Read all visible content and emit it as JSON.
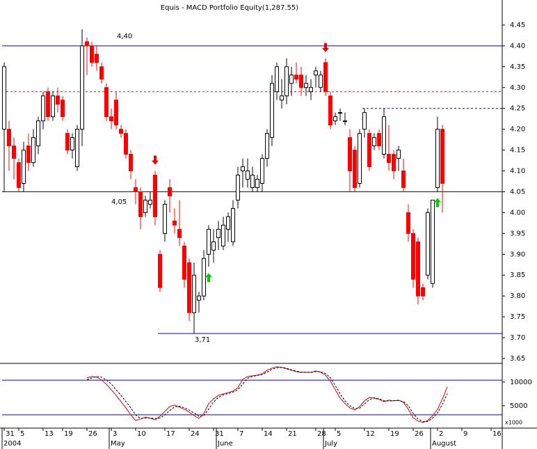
{
  "chart_data": {
    "type": "candlestick",
    "title": "Equis - MACD Portfolio Equity(1,287.55)",
    "categories": [
      "31",
      null,
      null,
      "5",
      null,
      null,
      null,
      null,
      "13",
      null,
      null,
      null,
      "19",
      null,
      null,
      null,
      null,
      "26",
      null,
      null,
      null,
      null,
      "3",
      null,
      null,
      null,
      null,
      "10",
      null,
      null,
      null,
      null,
      null,
      "17",
      null,
      null,
      null,
      null,
      "24",
      null,
      null,
      null,
      null,
      "31",
      null,
      null,
      null,
      null,
      "7",
      null,
      null,
      null,
      null,
      "14",
      null,
      null,
      null,
      null,
      "21",
      null,
      null,
      null,
      null,
      null,
      "28",
      null,
      null,
      null,
      "5",
      null,
      null,
      null,
      null,
      null,
      "12",
      null,
      null,
      null,
      null,
      "19",
      null,
      null,
      null,
      null,
      "26",
      null,
      null,
      null,
      null,
      "2",
      null,
      null,
      null,
      null,
      "9",
      null,
      null,
      null,
      null,
      null,
      "16"
    ],
    "months": [
      "2004",
      null,
      null,
      null,
      null,
      null,
      null,
      null,
      null,
      null,
      null,
      null,
      null,
      null,
      null,
      null,
      null,
      null,
      null,
      null,
      null,
      null,
      "May",
      null,
      null,
      null,
      null,
      null,
      null,
      null,
      null,
      null,
      null,
      null,
      null,
      null,
      null,
      null,
      null,
      null,
      null,
      null,
      null,
      null,
      "June",
      null,
      null,
      null,
      null,
      null,
      null,
      null,
      null,
      null,
      null,
      null,
      null,
      null,
      null,
      null,
      null,
      null,
      null,
      null,
      null,
      null,
      "July",
      null,
      null,
      null,
      null,
      null,
      null,
      null,
      null,
      null,
      null,
      null,
      null,
      null,
      null,
      null,
      null,
      null,
      null,
      null,
      null,
      null,
      "August",
      null,
      null,
      null,
      null,
      null,
      null,
      null,
      null,
      null,
      null,
      null
    ],
    "open": [
      4.2,
      4.2,
      4.16,
      4.12,
      4.07,
      4.16,
      4.12,
      4.16,
      4.22,
      4.29,
      4.23,
      4.28,
      4.27,
      4.19,
      4.15,
      4.11,
      4.2,
      4.41,
      4.4,
      4.38,
      4.35,
      4.3,
      4.23,
      4.27,
      4.2,
      4.19,
      4.14,
      4.06,
      4.05,
      4.0,
      4.02,
      4.09,
      3.9,
      3.95,
      4.06,
      3.98,
      3.96,
      3.92,
      3.88,
      3.76,
      3.79,
      3.8,
      3.9,
      3.91,
      3.94,
      3.92,
      3.96,
      3.93,
      4.03,
      4.1,
      4.08,
      4.06,
      4.06,
      4.07,
      4.13,
      4.18,
      4.29,
      4.27,
      4.28,
      4.31,
      4.33,
      4.33,
      4.3,
      4.29,
      4.33,
      4.3,
      4.36,
      4.28,
      4.22,
      4.24,
      4.22,
      4.18,
      4.15,
      4.07,
      4.2,
      4.19,
      4.16,
      4.19,
      4.14,
      4.14,
      4.14,
      4.13,
      4.1,
      4.0,
      3.95,
      3.93,
      3.82,
      3.85,
      3.83,
      4.06,
      4.2,
      null,
      null,
      null,
      null,
      null,
      null,
      null,
      null,
      null,
      null
    ],
    "high": [
      4.36,
      4.22,
      4.18,
      4.13,
      4.17,
      4.19,
      4.2,
      4.23,
      4.29,
      4.3,
      4.29,
      4.3,
      4.28,
      4.2,
      4.19,
      4.21,
      4.44,
      4.42,
      4.41,
      4.4,
      4.36,
      4.31,
      4.25,
      4.29,
      4.21,
      4.2,
      4.15,
      4.08,
      4.06,
      4.04,
      4.05,
      4.1,
      3.91,
      4.03,
      4.08,
      4.01,
      4.03,
      3.93,
      3.89,
      3.88,
      3.81,
      3.91,
      3.97,
      3.96,
      3.98,
      3.99,
      4.0,
      4.03,
      4.11,
      4.13,
      4.13,
      4.11,
      4.09,
      4.14,
      4.2,
      4.33,
      4.36,
      4.32,
      4.37,
      4.35,
      4.36,
      4.35,
      4.33,
      4.32,
      4.35,
      4.34,
      4.37,
      4.29,
      4.24,
      4.25,
      4.24,
      4.2,
      4.16,
      4.2,
      4.25,
      4.2,
      4.19,
      4.2,
      4.25,
      4.21,
      4.15,
      4.16,
      4.13,
      4.02,
      3.96,
      3.94,
      3.83,
      4.01,
      4.03,
      4.23,
      4.21,
      null,
      null,
      null,
      null,
      null,
      null,
      null,
      null,
      null,
      null
    ],
    "low": [
      4.05,
      4.1,
      4.08,
      4.05,
      4.05,
      4.1,
      4.11,
      4.14,
      4.2,
      4.22,
      4.22,
      4.24,
      4.22,
      4.14,
      4.13,
      4.1,
      4.16,
      4.33,
      4.35,
      4.34,
      4.31,
      4.22,
      4.2,
      4.2,
      4.18,
      4.13,
      4.08,
      4.02,
      3.96,
      3.99,
      4.01,
      3.97,
      3.81,
      3.93,
      4.0,
      3.95,
      3.92,
      3.82,
      3.74,
      3.71,
      3.76,
      3.79,
      3.87,
      3.88,
      3.91,
      3.91,
      3.93,
      3.92,
      4.01,
      4.06,
      4.06,
      4.05,
      4.05,
      4.05,
      4.11,
      4.16,
      4.27,
      4.25,
      4.26,
      4.28,
      4.31,
      4.28,
      4.28,
      4.27,
      4.3,
      4.29,
      4.28,
      4.2,
      4.21,
      4.22,
      4.21,
      4.05,
      4.05,
      4.06,
      4.18,
      4.1,
      4.15,
      4.15,
      4.13,
      4.1,
      4.08,
      4.1,
      4.05,
      3.93,
      3.82,
      3.78,
      3.79,
      3.84,
      3.82,
      4.05,
      4.0,
      null,
      null,
      null,
      null,
      null,
      null,
      null,
      null,
      null,
      null
    ],
    "close": [
      4.35,
      4.16,
      4.13,
      4.06,
      4.15,
      4.12,
      4.18,
      4.22,
      4.28,
      4.23,
      4.28,
      4.26,
      4.23,
      4.15,
      4.18,
      4.2,
      4.4,
      4.4,
      4.36,
      4.36,
      4.32,
      4.23,
      4.22,
      4.21,
      4.19,
      4.14,
      4.1,
      4.05,
      3.99,
      4.03,
      4.03,
      3.99,
      3.82,
      4.02,
      4.04,
      3.97,
      3.94,
      3.84,
      3.76,
      3.85,
      3.8,
      3.89,
      3.96,
      3.93,
      3.96,
      3.97,
      3.99,
      4.01,
      4.09,
      4.11,
      4.1,
      4.09,
      4.08,
      4.13,
      4.19,
      4.31,
      4.35,
      4.28,
      4.35,
      4.33,
      4.32,
      4.3,
      4.31,
      4.3,
      4.34,
      4.33,
      4.29,
      4.21,
      4.23,
      4.24,
      4.22,
      4.1,
      4.06,
      4.19,
      4.24,
      4.11,
      4.18,
      4.16,
      4.23,
      4.12,
      4.1,
      4.15,
      4.06,
      3.95,
      3.84,
      3.8,
      3.8,
      4.0,
      4.03,
      4.2,
      4.07,
      null,
      null,
      null,
      null,
      null,
      null,
      null,
      null,
      null,
      null
    ],
    "up_color": "#ffffff",
    "down_color": "#ff0000",
    "ylim": [
      3.64,
      4.51
    ],
    "yticks": [
      3.65,
      {
        "value": 3.7,
        "label": "3.70"
      },
      3.75,
      {
        "value": 3.8,
        "label": "3.80"
      },
      3.85,
      {
        "value": 3.9,
        "label": "3.90"
      },
      3.95,
      {
        "value": 4.0,
        "label": "4.00"
      },
      4.05,
      {
        "value": 4.1,
        "label": "4.10"
      },
      4.15,
      {
        "value": 4.2,
        "label": "4.20"
      },
      4.25,
      {
        "value": 4.3,
        "label": "4.30"
      },
      4.35,
      {
        "value": 4.4,
        "label": "4.40"
      },
      4.45
    ],
    "levels": [
      {
        "value": 4.4,
        "label": "4,40",
        "color": "#0000cc",
        "style": "solid"
      },
      {
        "value": 4.29,
        "color": "#ff0000",
        "style": "dashed"
      },
      {
        "value": 4.25,
        "color": "#0000cc",
        "style": "dashed",
        "from": 74
      },
      {
        "value": 4.05,
        "label": "4,05",
        "color": "#0000cc",
        "style": "solid"
      },
      {
        "value": 3.71,
        "label": "3,71",
        "color": "#0000cc",
        "style": "solid",
        "from": 32
      }
    ],
    "markers": [
      {
        "at": 31,
        "kind": "down",
        "color": "#ee0000"
      },
      {
        "at": 66,
        "kind": "down",
        "color": "#ee0000"
      },
      {
        "at": 42,
        "kind": "up",
        "color": "#00cc00"
      },
      {
        "at": 89,
        "kind": "up",
        "color": "#00cc00"
      }
    ],
    "lower": {
      "type": "line",
      "scale_label": "x1000",
      "ylim": [
        300,
        13500
      ],
      "yticks": [
        10000,
        5000
      ],
      "levels": [
        {
          "value": 10400,
          "color": "#0000cc"
        },
        {
          "value": 3100,
          "color": "#0000cc"
        }
      ],
      "series": [
        {
          "color": "#dd0000",
          "style": "solid",
          "values": [
            null,
            null,
            null,
            null,
            null,
            null,
            null,
            null,
            null,
            null,
            null,
            null,
            null,
            null,
            null,
            null,
            null,
            10880,
            11170,
            11030,
            10440,
            9560,
            8380,
            7200,
            5880,
            4560,
            3090,
            1910,
            2200,
            2650,
            2350,
            2060,
            2800,
            3820,
            4850,
            5150,
            4710,
            4270,
            3680,
            2940,
            2350,
            3380,
            5440,
            6470,
            7200,
            7500,
            7790,
            8090,
            8820,
            10590,
            11170,
            11320,
            11470,
            11760,
            12500,
            12940,
            13230,
            13090,
            12790,
            12500,
            12200,
            12060,
            12060,
            12060,
            12350,
            12060,
            11470,
            10150,
            8380,
            6620,
            5440,
            4560,
            4120,
            4850,
            6030,
            6760,
            6620,
            6320,
            5880,
            6180,
            6030,
            6180,
            5740,
            4270,
            2500,
            1770,
            1470,
            1910,
            2940,
            4270,
            6470,
            9000,
            null,
            null,
            null,
            null,
            null,
            null,
            null,
            null,
            null,
            null
          ]
        },
        {
          "color": "#000000",
          "style": "dashed",
          "values": [
            null,
            null,
            null,
            null,
            null,
            null,
            null,
            null,
            null,
            null,
            null,
            null,
            null,
            null,
            null,
            null,
            null,
            10500,
            10880,
            11170,
            11030,
            10440,
            9560,
            8380,
            7200,
            5880,
            4560,
            3090,
            2300,
            2400,
            2450,
            2300,
            2400,
            3100,
            4000,
            4800,
            4900,
            4600,
            4100,
            3500,
            2800,
            2900,
            4300,
            5800,
            6800,
            7300,
            7600,
            7900,
            8400,
            9600,
            10800,
            11200,
            11400,
            11600,
            12100,
            12700,
            13000,
            13100,
            12900,
            12600,
            12300,
            12100,
            12060,
            12060,
            12200,
            12200,
            11800,
            10900,
            9300,
            7500,
            6000,
            5000,
            4400,
            4500,
            5400,
            6300,
            6700,
            6500,
            6100,
            6000,
            6100,
            6100,
            5900,
            5000,
            3400,
            2200,
            1700,
            1700,
            2400,
            3500,
            5300,
            7600,
            null,
            null,
            null,
            null,
            null,
            null,
            null,
            null,
            null,
            null
          ]
        }
      ]
    }
  }
}
